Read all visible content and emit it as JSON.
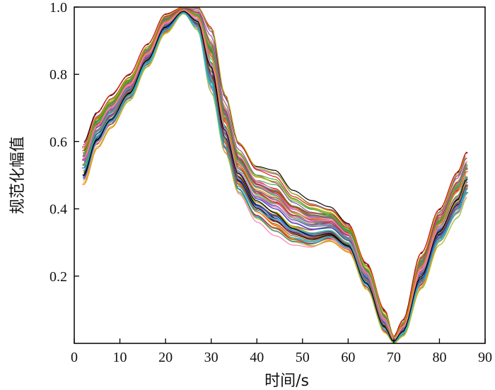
{
  "chart_data": {
    "type": "line",
    "title": "",
    "xlabel": "时间/s",
    "ylabel": "规范化幅值",
    "xlim": [
      0,
      90
    ],
    "ylim": [
      0.0,
      1.0
    ],
    "xticks": [
      0,
      10,
      20,
      30,
      40,
      50,
      60,
      70,
      80,
      90
    ],
    "xtick_labels": [
      "0",
      "10",
      "20",
      "30",
      "40",
      "50",
      "60",
      "70",
      "80",
      "90"
    ],
    "yticks": [
      0.2,
      0.4,
      0.6,
      0.8,
      1.0
    ],
    "ytick_labels": [
      "0.2",
      "0.4",
      "0.6",
      "0.8",
      "1.0"
    ],
    "grid": false,
    "legend": "none",
    "series_count": 64,
    "palette": [
      "#e41a1c",
      "#377eb8",
      "#4daf4a",
      "#984ea3",
      "#ff7f00",
      "#a6a600",
      "#a65628",
      "#f781bf",
      "#17becf",
      "#000000",
      "#1f3fbf",
      "#2ca02c",
      "#d62728",
      "#9467bd",
      "#8c564b",
      "#e377c2",
      "#7f7f7f",
      "#bcbd22"
    ],
    "envelope": {
      "x": [
        2,
        5,
        8,
        12,
        16,
        20,
        24,
        27,
        30,
        33,
        36,
        40,
        44,
        48,
        52,
        56,
        60,
        64,
        68,
        70,
        72,
        76,
        80,
        84,
        86
      ],
      "y_low": [
        0.47,
        0.58,
        0.64,
        0.72,
        0.82,
        0.92,
        0.98,
        0.93,
        0.74,
        0.56,
        0.44,
        0.36,
        0.32,
        0.29,
        0.28,
        0.3,
        0.27,
        0.16,
        0.03,
        0.0,
        0.02,
        0.16,
        0.29,
        0.37,
        0.43
      ],
      "y_high": [
        0.6,
        0.69,
        0.74,
        0.8,
        0.89,
        0.98,
        1.0,
        1.0,
        0.94,
        0.74,
        0.6,
        0.53,
        0.52,
        0.46,
        0.43,
        0.41,
        0.36,
        0.24,
        0.1,
        0.02,
        0.07,
        0.27,
        0.4,
        0.51,
        0.57
      ]
    }
  }
}
